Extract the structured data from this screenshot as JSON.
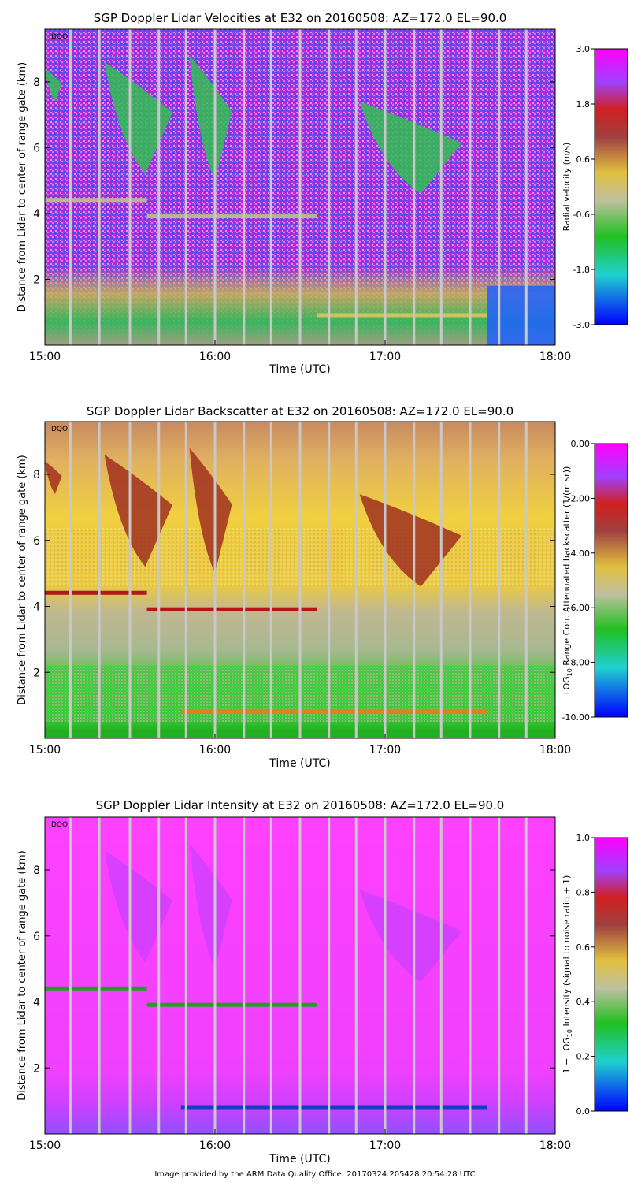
{
  "footer": "Image provided by the ARM Data Quality Office: 20170324.205428 20:54:28 UTC",
  "chart_data": [
    {
      "type": "heatmap",
      "id": "velocity",
      "title": "SGP Doppler Lidar Velocities at E32 on 20160508: AZ=172.0 EL=90.0",
      "xlabel": "Time (UTC)",
      "ylabel": "Distance from Lidar to center of range gate (km)",
      "xticks": [
        "15:00",
        "16:00",
        "17:00",
        "18:00"
      ],
      "xlim": [
        15.0,
        18.0
      ],
      "yticks": [
        2,
        4,
        6,
        8
      ],
      "ylim": [
        0,
        9.6
      ],
      "flag": "DQO",
      "colorbar": {
        "label": "Radial velocity (m/s)",
        "ticks": [
          "3.0",
          "1.8",
          "0.6",
          "-0.6",
          "-1.8",
          "-3.0"
        ],
        "range": [
          -3.0,
          3.0
        ]
      },
      "features": {
        "background": "#8a3fe0",
        "noise": [
          "#3050ff",
          "#c020c0",
          "#ff60ff"
        ],
        "boundary_layer": "#e8d040",
        "layer": "#b8b890",
        "cloud": "#30c050",
        "downdraft": "#2060ff",
        "gap": "#c8c8c8"
      },
      "layers": [
        {
          "name": "residual-layer",
          "x_start": 15.0,
          "x_end": 15.6,
          "height_km": 4.4
        },
        {
          "name": "residual-layer",
          "x_start": 15.6,
          "x_end": 16.6,
          "height_km": 3.9
        },
        {
          "name": "boundary-layer-top",
          "x_start": 16.6,
          "x_end": 17.6,
          "height_km": 0.9
        }
      ],
      "clouds": [
        {
          "x_start": 15.35,
          "x_end": 15.75,
          "top_km": 8.6,
          "bottom_km": 5.2
        },
        {
          "x_start": 15.85,
          "x_end": 16.1,
          "top_km": 8.8,
          "bottom_km": 5.0
        },
        {
          "x_start": 16.85,
          "x_end": 17.45,
          "top_km": 7.4,
          "bottom_km": 4.6
        },
        {
          "x_start": 15.0,
          "x_end": 15.1,
          "top_km": 8.4,
          "bottom_km": 7.4
        }
      ],
      "gaps_utc": [
        15.15,
        15.32,
        15.5,
        15.67,
        15.83,
        16.0,
        16.17,
        16.33,
        16.5,
        16.67,
        16.83,
        17.0,
        17.17,
        17.33,
        17.5,
        17.67,
        17.83
      ]
    },
    {
      "type": "heatmap",
      "id": "backscatter",
      "title": "SGP Doppler Lidar Backscatter at E32 on 20160508: AZ=172.0 EL=90.0",
      "xlabel": "Time (UTC)",
      "ylabel": "Distance from Lidar to center of range gate (km)",
      "xticks": [
        "15:00",
        "16:00",
        "17:00",
        "18:00"
      ],
      "xlim": [
        15.0,
        18.0
      ],
      "yticks": [
        2,
        4,
        6,
        8
      ],
      "ylim": [
        0,
        9.6
      ],
      "flag": "DQO",
      "colorbar": {
        "label": "LOG10 Range Corr. Attenuated backscatter (1/(m sr))",
        "label_parts": [
          "LOG",
          "10",
          " Range Corr. Attenuated backscatter (1/(m sr))"
        ],
        "ticks": [
          "0.00",
          "-2.00",
          "-4.00",
          "-6.00",
          "-8.00",
          "-10.00"
        ],
        "range": [
          -10.0,
          0.0
        ]
      },
      "features": {
        "background": "#e8c840",
        "upper": "#d0a070",
        "mid": "#b8b8a0",
        "lower": "#40c040",
        "surface": "#20b020",
        "layer": "#b01818",
        "cloud": "#a03020",
        "gap": "#c8c8c8"
      },
      "layers": [
        {
          "name": "aerosol-layer",
          "x_start": 15.0,
          "x_end": 15.6,
          "height_km": 4.4
        },
        {
          "name": "aerosol-layer",
          "x_start": 15.6,
          "x_end": 16.6,
          "height_km": 3.9
        },
        {
          "name": "boundary-layer-top",
          "x_start": 15.8,
          "x_end": 17.6,
          "height_km": 0.8
        }
      ],
      "clouds": [
        {
          "x_start": 15.35,
          "x_end": 15.75,
          "top_km": 8.6,
          "bottom_km": 5.2
        },
        {
          "x_start": 15.85,
          "x_end": 16.1,
          "top_km": 8.8,
          "bottom_km": 5.0
        },
        {
          "x_start": 16.85,
          "x_end": 17.45,
          "top_km": 7.4,
          "bottom_km": 4.6
        },
        {
          "x_start": 15.0,
          "x_end": 15.1,
          "top_km": 8.4,
          "bottom_km": 7.4
        }
      ],
      "gaps_utc": [
        15.15,
        15.32,
        15.5,
        15.67,
        15.83,
        16.0,
        16.17,
        16.33,
        16.5,
        16.67,
        16.83,
        17.0,
        17.17,
        17.33,
        17.5,
        17.67,
        17.83
      ]
    },
    {
      "type": "heatmap",
      "id": "intensity",
      "title": "SGP Doppler Lidar Intensity at E32 on 20160508: AZ=172.0 EL=90.0",
      "xlabel": "Time (UTC)",
      "ylabel": "Distance from Lidar to center of range gate (km)",
      "xticks": [
        "15:00",
        "16:00",
        "17:00",
        "18:00"
      ],
      "xlim": [
        15.0,
        18.0
      ],
      "yticks": [
        2,
        4,
        6,
        8
      ],
      "ylim": [
        0,
        9.6
      ],
      "flag": "DQO",
      "colorbar": {
        "label": "1 - LOG10 Intensity (signal to noise ratio + 1)",
        "label_parts": [
          "1 − LOG",
          "10",
          " Intensity (signal to noise ratio + 1)"
        ],
        "ticks": [
          "1.0",
          "0.8",
          "0.6",
          "0.4",
          "0.2",
          "0.0"
        ],
        "range": [
          0.0,
          1.0
        ]
      },
      "features": {
        "background": "#ff40ff",
        "lower": "#c050ff",
        "layer": "#20a020",
        "cloud": "#c040ff",
        "gap": "#c8c8c8"
      },
      "layers": [
        {
          "name": "layer",
          "x_start": 15.0,
          "x_end": 15.6,
          "height_km": 4.4
        },
        {
          "name": "layer",
          "x_start": 15.6,
          "x_end": 16.6,
          "height_km": 3.9
        },
        {
          "name": "boundary-layer-top",
          "x_start": 15.8,
          "x_end": 17.6,
          "height_km": 0.8
        }
      ],
      "clouds": [
        {
          "x_start": 15.35,
          "x_end": 15.75,
          "top_km": 8.6,
          "bottom_km": 5.2
        },
        {
          "x_start": 15.85,
          "x_end": 16.1,
          "top_km": 8.8,
          "bottom_km": 5.0
        },
        {
          "x_start": 16.85,
          "x_end": 17.45,
          "top_km": 7.4,
          "bottom_km": 4.6
        }
      ],
      "gaps_utc": [
        15.15,
        15.32,
        15.5,
        15.67,
        15.83,
        16.0,
        16.17,
        16.33,
        16.5,
        16.67,
        16.83,
        17.0,
        17.17,
        17.33,
        17.5,
        17.67,
        17.83
      ]
    }
  ]
}
